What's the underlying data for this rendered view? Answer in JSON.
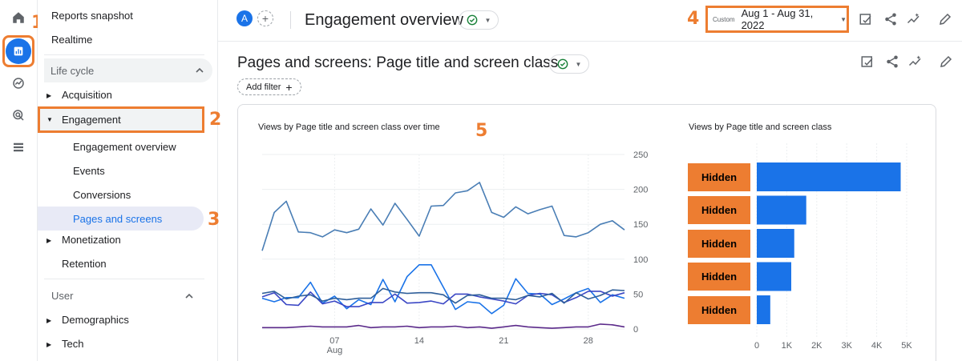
{
  "annotations": [
    "1",
    "2",
    "3",
    "4",
    "5"
  ],
  "rail": {
    "items": [
      {
        "name": "home-icon"
      },
      {
        "name": "reports-icon",
        "active": true
      },
      {
        "name": "explore-icon"
      },
      {
        "name": "advertising-icon"
      },
      {
        "name": "configure-icon"
      }
    ]
  },
  "sidebar": {
    "reports_snapshot": "Reports snapshot",
    "realtime": "Realtime",
    "lifecycle": "Life cycle",
    "acquisition": "Acquisition",
    "engagement": "Engagement",
    "engagement_overview": "Engagement overview",
    "events": "Events",
    "conversions": "Conversions",
    "pages_and_screens": "Pages and screens",
    "monetization": "Monetization",
    "retention": "Retention",
    "user": "User",
    "demographics": "Demographics",
    "tech": "Tech"
  },
  "header": {
    "avatar_letter": "A",
    "add_compare": "+",
    "title": "Engagement overview",
    "date_label": "Custom",
    "date_range": "Aug 1 - Aug 31, 2022"
  },
  "report": {
    "title": "Pages and screens: Page title and screen class",
    "add_filter": "Add filter"
  },
  "colors": {
    "accent": "#1a73e8",
    "annotation": "#ed7d31",
    "bar": "#1a73e8"
  },
  "chart_data": [
    {
      "type": "line",
      "title": "Views by Page title and screen class over time",
      "x_ticks": [
        "07",
        "14",
        "21",
        "28"
      ],
      "x_month": "Aug",
      "y_ticks": [
        "0",
        "50",
        "100",
        "150",
        "200",
        "250"
      ],
      "ylim": [
        0,
        250
      ],
      "series": [
        {
          "color": "#4a7eb5",
          "values": [
            112,
            167,
            183,
            139,
            138,
            132,
            142,
            138,
            143,
            172,
            149,
            180,
            157,
            133,
            176,
            177,
            195,
            198,
            210,
            167,
            160,
            175,
            165,
            171,
            176,
            134,
            132,
            138,
            150,
            155,
            142
          ]
        },
        {
          "color": "#1a73e8",
          "values": [
            44,
            39,
            45,
            45,
            67,
            37,
            47,
            29,
            42,
            35,
            71,
            39,
            75,
            92,
            92,
            60,
            28,
            39,
            37,
            22,
            34,
            72,
            51,
            50,
            35,
            43,
            52,
            58,
            38,
            49,
            44
          ]
        },
        {
          "color": "#3b47c5",
          "values": [
            46,
            52,
            35,
            34,
            53,
            36,
            40,
            32,
            32,
            38,
            38,
            50,
            37,
            38,
            40,
            36,
            50,
            50,
            46,
            43,
            40,
            36,
            48,
            51,
            49,
            38,
            45,
            54,
            54,
            47,
            52
          ]
        },
        {
          "color": "#2f5f9a",
          "values": [
            51,
            54,
            43,
            47,
            49,
            40,
            44,
            42,
            44,
            44,
            58,
            53,
            51,
            52,
            52,
            49,
            37,
            48,
            49,
            44,
            44,
            42,
            48,
            46,
            51,
            37,
            52,
            43,
            48,
            56,
            55
          ]
        },
        {
          "color": "#5b2a8a",
          "values": [
            2,
            2,
            2,
            3,
            4,
            3,
            3,
            3,
            5,
            2,
            3,
            3,
            4,
            2,
            3,
            3,
            4,
            2,
            3,
            1,
            3,
            5,
            3,
            2,
            1,
            2,
            3,
            3,
            7,
            6,
            3
          ]
        }
      ]
    },
    {
      "type": "bar",
      "orientation": "horizontal",
      "title": "Views by Page title and screen class",
      "categories": [
        "Hidden",
        "Hidden",
        "Hidden",
        "Hidden",
        "Hidden"
      ],
      "values": [
        4800,
        1650,
        1250,
        1150,
        450
      ],
      "x_ticks": [
        "0",
        "1K",
        "2K",
        "3K",
        "4K",
        "5K"
      ],
      "xlim": [
        0,
        5000
      ]
    }
  ]
}
